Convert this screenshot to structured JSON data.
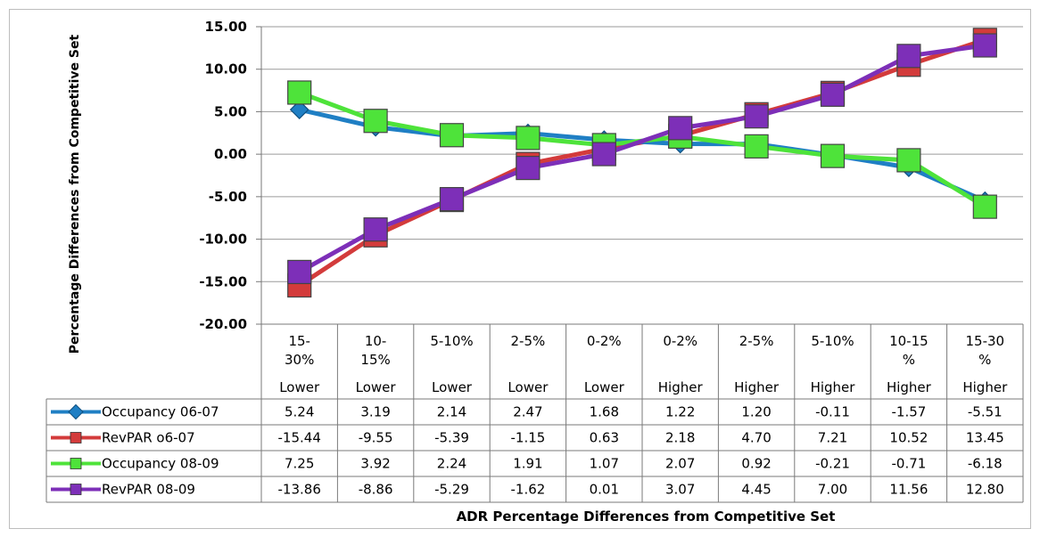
{
  "chart_data": {
    "type": "line",
    "ylabel": "Percentage Differences from Competitive Set",
    "xlabel": "ADR Percentage Differences from Competitive Set",
    "ylim": [
      -20,
      15
    ],
    "yticks": [
      "15.00",
      "10.00",
      "5.00",
      "0.00",
      "-5.00",
      "-10.00",
      "-15.00",
      "-20.00"
    ],
    "ytick_values": [
      15,
      10,
      5,
      0,
      -5,
      -10,
      -15,
      -20
    ],
    "grid": true,
    "legend_placement": "data-table-left",
    "categories": [
      {
        "line1": "15-",
        "line2": "30%",
        "line3": "Lower"
      },
      {
        "line1": "10-",
        "line2": "15%",
        "line3": "Lower"
      },
      {
        "line1": "5-10%",
        "line2": "",
        "line3": "Lower"
      },
      {
        "line1": "2-5%",
        "line2": "",
        "line3": "Lower"
      },
      {
        "line1": "0-2%",
        "line2": "",
        "line3": "Lower"
      },
      {
        "line1": "0-2%",
        "line2": "",
        "line3": "Higher"
      },
      {
        "line1": "2-5%",
        "line2": "",
        "line3": "Higher"
      },
      {
        "line1": "5-10%",
        "line2": "",
        "line3": "Higher"
      },
      {
        "line1": "10-15",
        "line2": "%",
        "line3": "Higher"
      },
      {
        "line1": "15-30",
        "line2": "%",
        "line3": "Higher"
      }
    ],
    "series": [
      {
        "name": "Occupancy 06-07",
        "color": "#1f7fc4",
        "marker": "diamond",
        "values": [
          5.24,
          3.19,
          2.14,
          2.47,
          1.68,
          1.22,
          1.2,
          -0.11,
          -1.57,
          -5.51
        ],
        "labels": [
          "5.24",
          "3.19",
          "2.14",
          "2.47",
          "1.68",
          "1.22",
          "1.20",
          "-0.11",
          "-1.57",
          "-5.51"
        ]
      },
      {
        "name": "RevPAR o6-07",
        "color": "#d33b3b",
        "marker": "square",
        "values": [
          -15.44,
          -9.55,
          -5.39,
          -1.15,
          0.63,
          2.18,
          4.7,
          7.21,
          10.52,
          13.45
        ],
        "labels": [
          "-15.44",
          "-9.55",
          "-5.39",
          "-1.15",
          "0.63",
          "2.18",
          "4.70",
          "7.21",
          "10.52",
          "13.45"
        ]
      },
      {
        "name": "Occupancy 08-09",
        "color": "#4ee33a",
        "marker": "square",
        "values": [
          7.25,
          3.92,
          2.24,
          1.91,
          1.07,
          2.07,
          0.92,
          -0.21,
          -0.71,
          -6.18
        ],
        "labels": [
          "7.25",
          "3.92",
          "2.24",
          "1.91",
          "1.07",
          "2.07",
          "0.92",
          "-0.21",
          "-0.71",
          "-6.18"
        ]
      },
      {
        "name": "RevPAR 08-09",
        "color": "#7d2fb8",
        "marker": "square",
        "values": [
          -13.86,
          -8.86,
          -5.29,
          -1.62,
          0.01,
          3.07,
          4.45,
          7.0,
          11.56,
          12.8
        ],
        "labels": [
          "-13.86",
          "-8.86",
          "-5.29",
          "-1.62",
          "0.01",
          "3.07",
          "4.45",
          "7.00",
          "11.56",
          "12.80"
        ]
      }
    ]
  }
}
